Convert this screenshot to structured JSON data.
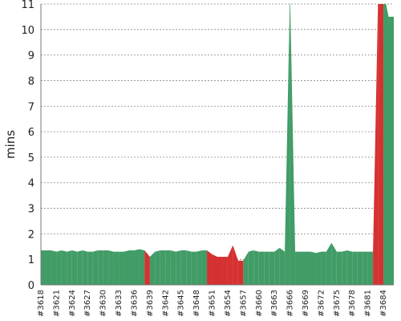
{
  "chart_data": {
    "type": "area",
    "y_label": "mins",
    "categories": [
      "#3618",
      null,
      null,
      "#3621",
      null,
      null,
      "#3624",
      null,
      null,
      "#3627",
      null,
      null,
      "#3630",
      null,
      null,
      "#3633",
      null,
      null,
      "#3636",
      null,
      null,
      "#3639",
      null,
      null,
      "#3642",
      null,
      null,
      "#3645",
      null,
      null,
      "#3648",
      null,
      null,
      "#3651",
      null,
      null,
      "#3654",
      null,
      null,
      "#3657",
      null,
      null,
      "#3660",
      null,
      null,
      "#3663",
      null,
      null,
      "#3666",
      null,
      null,
      "#3669",
      null,
      null,
      "#3672",
      null,
      null,
      "#3675",
      null,
      null,
      "#3678",
      null,
      null,
      "#3681",
      null,
      null,
      "#3684",
      null,
      null
    ],
    "values": [
      1.35,
      1.35,
      1.35,
      1.3,
      1.35,
      1.3,
      1.35,
      1.3,
      1.35,
      1.3,
      1.3,
      1.35,
      1.35,
      1.35,
      1.3,
      1.3,
      1.3,
      1.35,
      1.35,
      1.4,
      1.35,
      1.1,
      1.3,
      1.35,
      1.35,
      1.35,
      1.3,
      1.35,
      1.35,
      1.3,
      1.3,
      1.35,
      1.35,
      1.2,
      1.1,
      1.1,
      1.1,
      1.55,
      0.95,
      0.95,
      1.3,
      1.35,
      1.3,
      1.3,
      1.3,
      1.3,
      1.45,
      1.3,
      11.5,
      1.3,
      1.3,
      1.3,
      1.3,
      1.25,
      1.3,
      1.3,
      1.65,
      1.3,
      1.3,
      1.35,
      1.3,
      1.3,
      1.3,
      1.3,
      1.3,
      11.5,
      11.5,
      10.5,
      10.5
    ],
    "point_colors": [
      "#419c66",
      "#419c66",
      "#419c66",
      "#419c66",
      "#419c66",
      "#419c66",
      "#419c66",
      "#419c66",
      "#419c66",
      "#419c66",
      "#419c66",
      "#419c66",
      "#419c66",
      "#419c66",
      "#419c66",
      "#419c66",
      "#419c66",
      "#419c66",
      "#419c66",
      "#419c66",
      "#419c66",
      "#d63131",
      "#419c66",
      "#419c66",
      "#419c66",
      "#419c66",
      "#419c66",
      "#419c66",
      "#419c66",
      "#419c66",
      "#419c66",
      "#419c66",
      "#419c66",
      "#d63131",
      "#d63131",
      "#d63131",
      "#d63131",
      "#d63131",
      "#d63131",
      "#d63131",
      "#419c66",
      "#419c66",
      "#419c66",
      "#419c66",
      "#419c66",
      "#419c66",
      "#419c66",
      "#419c66",
      "#419c66",
      "#419c66",
      "#419c66",
      "#419c66",
      "#419c66",
      "#419c66",
      "#419c66",
      "#419c66",
      "#419c66",
      "#419c66",
      "#419c66",
      "#419c66",
      "#419c66",
      "#419c66",
      "#419c66",
      "#419c66",
      "#419c66",
      "#d63131",
      "#d63131",
      "#419c66",
      "#419c66"
    ],
    "ylim": [
      0,
      11
    ],
    "yticks": [
      0,
      1,
      2,
      3,
      4,
      5,
      6,
      7,
      8,
      9,
      10,
      11
    ],
    "grid": true
  }
}
